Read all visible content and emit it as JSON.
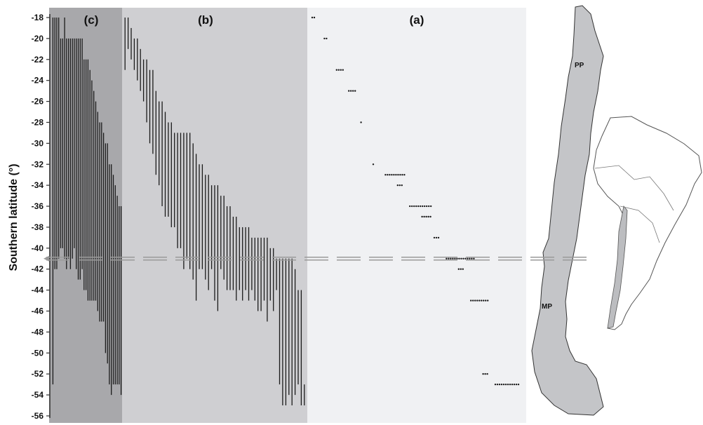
{
  "chart_data": {
    "type": "range",
    "ylabel": "Southern latitude (°)",
    "ylim": [
      -56,
      -18
    ],
    "yticks": [
      -18,
      -20,
      -22,
      -24,
      -26,
      -28,
      -30,
      -32,
      -34,
      -36,
      -38,
      -40,
      -42,
      -44,
      -46,
      -48,
      -50,
      -52,
      -54,
      -56
    ],
    "reference_latitude": -41,
    "panels": [
      {
        "label": "(c)",
        "color": "#a8a8ab"
      },
      {
        "label": "(b)",
        "color": "#cfcfd2"
      },
      {
        "label": "(a)",
        "color": "#f0f1f3"
      }
    ],
    "panel_c_ranges": [
      [
        -18,
        -53
      ],
      [
        -18,
        -42
      ],
      [
        -18,
        -42
      ],
      [
        -18,
        -41
      ],
      [
        -20,
        -40
      ],
      [
        -20,
        -40
      ],
      [
        -18,
        -41
      ],
      [
        -20,
        -42
      ],
      [
        -20,
        -41
      ],
      [
        -20,
        -42
      ],
      [
        -20,
        -41
      ],
      [
        -20,
        -40
      ],
      [
        -20,
        -42
      ],
      [
        -20,
        -43
      ],
      [
        -20,
        -43
      ],
      [
        -20,
        -42
      ],
      [
        -22,
        -44
      ],
      [
        -22,
        -44
      ],
      [
        -22,
        -45
      ],
      [
        -23,
        -45
      ],
      [
        -24,
        -45
      ],
      [
        -25,
        -45
      ],
      [
        -26,
        -45
      ],
      [
        -27,
        -46
      ],
      [
        -28,
        -47
      ],
      [
        -28,
        -47
      ],
      [
        -29,
        -47
      ],
      [
        -30,
        -50
      ],
      [
        -30,
        -51
      ],
      [
        -32,
        -53
      ],
      [
        -32,
        -54
      ],
      [
        -33,
        -53
      ],
      [
        -34,
        -53
      ],
      [
        -35,
        -53
      ],
      [
        -36,
        -53
      ],
      [
        -36,
        -54
      ]
    ],
    "panel_b_ranges": [
      [
        -18,
        -23
      ],
      [
        -18,
        -21
      ],
      [
        -19,
        -22
      ],
      [
        -20,
        -23
      ],
      [
        -20,
        -24
      ],
      [
        -21,
        -25
      ],
      [
        -22,
        -26
      ],
      [
        -22,
        -28
      ],
      [
        -23,
        -30
      ],
      [
        -23,
        -31
      ],
      [
        -25,
        -33
      ],
      [
        -26,
        -34
      ],
      [
        -26,
        -36
      ],
      [
        -27,
        -37
      ],
      [
        -28,
        -37
      ],
      [
        -28,
        -38
      ],
      [
        -29,
        -38
      ],
      [
        -29,
        -40
      ],
      [
        -29,
        -40
      ],
      [
        -29,
        -42
      ],
      [
        -29,
        -41
      ],
      [
        -29,
        -42
      ],
      [
        -30,
        -43
      ],
      [
        -31,
        -45
      ],
      [
        -32,
        -42
      ],
      [
        -32,
        -42
      ],
      [
        -33,
        -43
      ],
      [
        -33,
        -44
      ],
      [
        -34,
        -42
      ],
      [
        -34,
        -45
      ],
      [
        -34,
        -46
      ],
      [
        -35,
        -42
      ],
      [
        -35,
        -43
      ],
      [
        -36,
        -44
      ],
      [
        -36,
        -44
      ],
      [
        -37,
        -44
      ],
      [
        -37,
        -45
      ],
      [
        -38,
        -44
      ],
      [
        -38,
        -45
      ],
      [
        -38,
        -44
      ],
      [
        -38,
        -45
      ],
      [
        -39,
        -44
      ],
      [
        -39,
        -45
      ],
      [
        -39,
        -46
      ],
      [
        -39,
        -46
      ],
      [
        -39,
        -45
      ],
      [
        -39,
        -47
      ],
      [
        -40,
        -45
      ],
      [
        -40,
        -46
      ],
      [
        -41,
        -44
      ],
      [
        -41,
        -53
      ],
      [
        -41,
        -55
      ],
      [
        -41,
        -55
      ],
      [
        -41,
        -54
      ],
      [
        -41,
        -55
      ],
      [
        -42,
        -54
      ],
      [
        -44,
        -53
      ],
      [
        -44,
        -55
      ],
      [
        -53,
        -55
      ]
    ],
    "panel_a_points": [
      [
        -18,
        2
      ],
      [
        -20,
        2
      ],
      [
        -23,
        4
      ],
      [
        -25,
        4
      ],
      [
        -28,
        1
      ],
      [
        -32,
        1
      ],
      [
        -33,
        10
      ],
      [
        -34,
        3
      ],
      [
        -36,
        11
      ],
      [
        -37,
        5
      ],
      [
        -39,
        3
      ],
      [
        -41,
        14
      ],
      [
        -42,
        3
      ],
      [
        -45,
        9
      ],
      [
        -52,
        3
      ],
      [
        -53,
        12
      ]
    ],
    "map_labels": [
      "PP",
      "MP"
    ]
  }
}
